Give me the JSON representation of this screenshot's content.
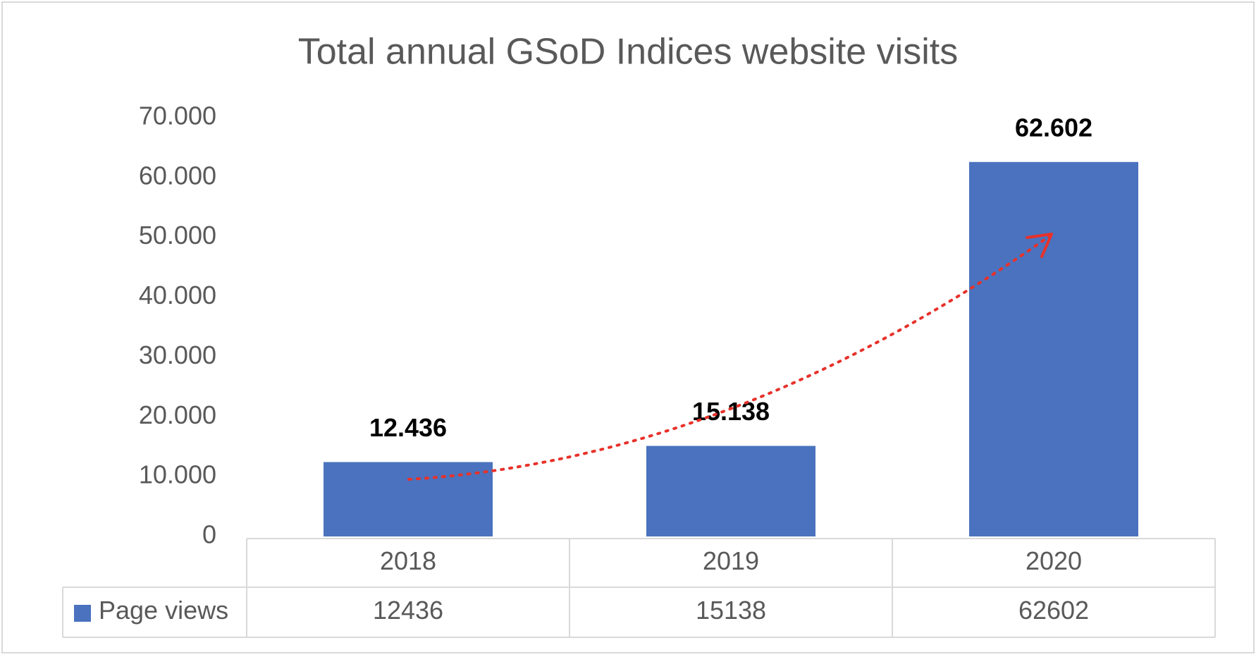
{
  "chart_data": {
    "type": "bar",
    "title": "Total annual GSoD Indices website visits",
    "categories": [
      "2018",
      "2019",
      "2020"
    ],
    "series": [
      {
        "name": "Page views",
        "color": "#4a72be",
        "values": [
          12436,
          15138,
          62602
        ],
        "value_labels": [
          "12.436",
          "15.138",
          "62.602"
        ]
      }
    ],
    "ylim": [
      0,
      70000
    ],
    "yticks": [
      0,
      {
        "value": 10000,
        "label": "10.000"
      },
      {
        "value": 20000,
        "label": "20.000"
      },
      {
        "value": 30000,
        "label": "30.000"
      },
      {
        "value": 40000,
        "label": "40.000"
      },
      {
        "value": 50000,
        "label": "50.000"
      },
      {
        "value": 60000,
        "label": "60.000"
      },
      {
        "value": 70000,
        "label": "70.000"
      }
    ],
    "grid": false
  }
}
